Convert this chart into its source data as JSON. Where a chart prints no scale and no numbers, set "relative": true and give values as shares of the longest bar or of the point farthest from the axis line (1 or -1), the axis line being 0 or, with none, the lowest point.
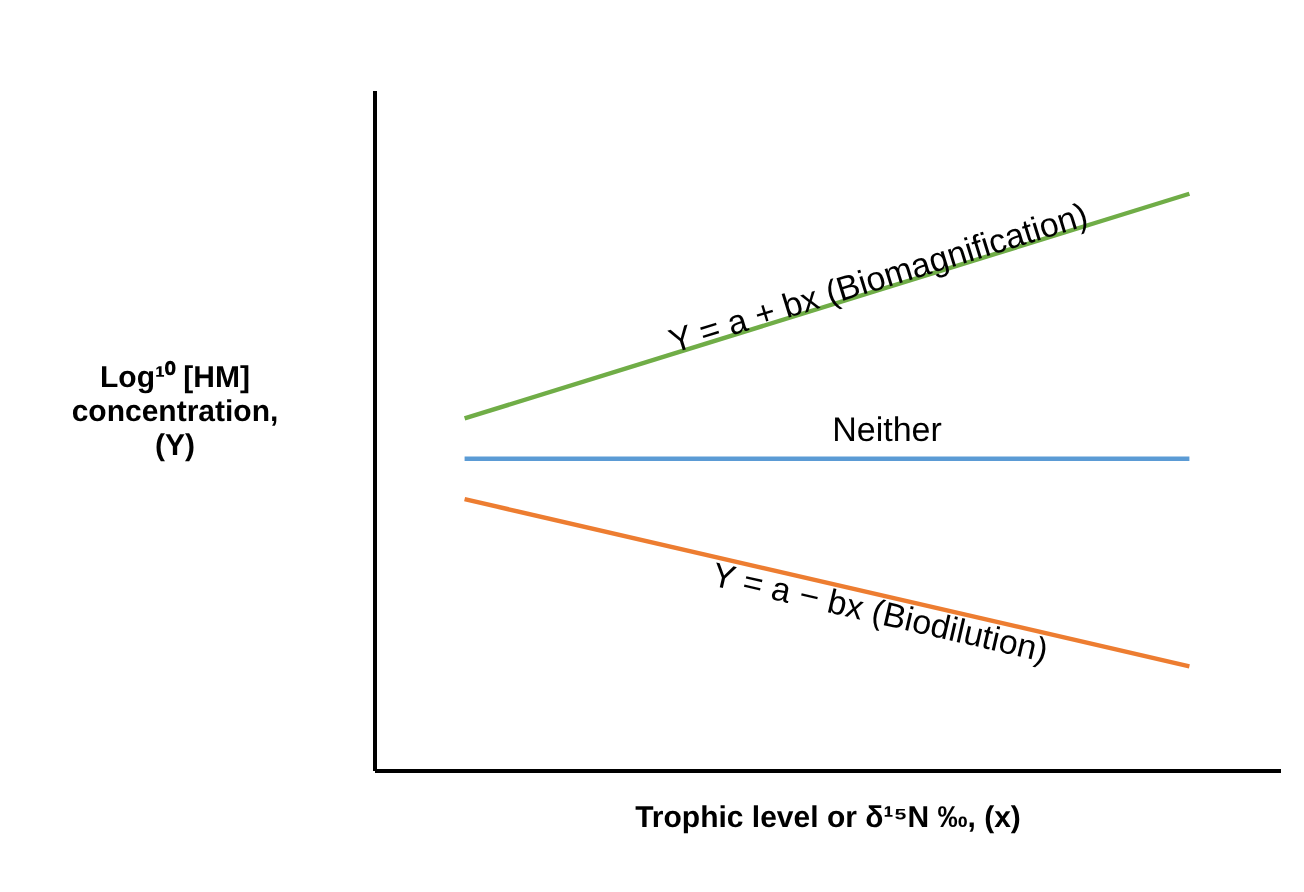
{
  "chart_data": {
    "type": "line",
    "relative": true,
    "xlabel": "Trophic level or δ¹⁵N ‰, (x)",
    "ylabel": "Log¹⁰ [HM] concentration, (Y)",
    "categories": [
      null,
      null
    ],
    "series": [
      {
        "name": "Y = a + bx  (Biomagnification)",
        "color": "#70ad47",
        "values": [
          0.61,
          1
        ]
      },
      {
        "name": "Neither",
        "color": "#5b9bd5",
        "values": [
          0.54,
          0.54
        ]
      },
      {
        "name": "Y = a − bx  (Biodilution)",
        "color": "#ed7d31",
        "values": [
          0.47,
          0.18
        ]
      }
    ],
    "marker": "none",
    "line_style": "solid"
  }
}
